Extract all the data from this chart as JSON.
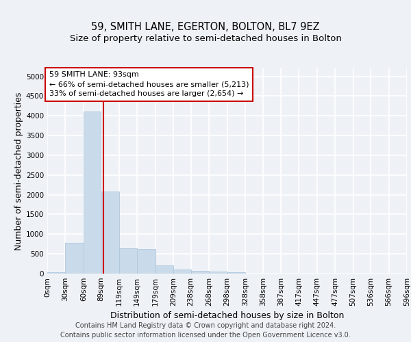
{
  "title": "59, SMITH LANE, EGERTON, BOLTON, BL7 9EZ",
  "subtitle": "Size of property relative to semi-detached houses in Bolton",
  "xlabel": "Distribution of semi-detached houses by size in Bolton",
  "ylabel": "Number of semi-detached properties",
  "footer_line1": "Contains HM Land Registry data © Crown copyright and database right 2024.",
  "footer_line2": "Contains public sector information licensed under the Open Government Licence v3.0.",
  "bar_color": "#c9daea",
  "bar_edge_color": "#b0c8dc",
  "property_line_color": "#cc0000",
  "property_sqm": 93,
  "annotation_line1": "59 SMITH LANE: 93sqm",
  "annotation_line2": "← 66% of semi-detached houses are smaller (5,213)",
  "annotation_line3": "33% of semi-detached houses are larger (2,654) →",
  "bin_edges": [
    0,
    30,
    60,
    89,
    119,
    149,
    179,
    209,
    238,
    268,
    298,
    328,
    358,
    387,
    417,
    447,
    477,
    507,
    536,
    566,
    596
  ],
  "bin_labels": [
    "0sqm",
    "30sqm",
    "60sqm",
    "89sqm",
    "119sqm",
    "149sqm",
    "179sqm",
    "209sqm",
    "238sqm",
    "268sqm",
    "298sqm",
    "328sqm",
    "358sqm",
    "387sqm",
    "417sqm",
    "447sqm",
    "477sqm",
    "507sqm",
    "536sqm",
    "566sqm",
    "596sqm"
  ],
  "counts": [
    30,
    780,
    4100,
    2080,
    640,
    620,
    200,
    110,
    75,
    55,
    40,
    0,
    0,
    0,
    0,
    0,
    0,
    0,
    0,
    0
  ],
  "ylim": [
    0,
    5200
  ],
  "yticks": [
    0,
    500,
    1000,
    1500,
    2000,
    2500,
    3000,
    3500,
    4000,
    4500,
    5000
  ],
  "background_color": "#eef2f7",
  "plot_bg_color": "#eef2f7",
  "grid_color": "#ffffff",
  "title_fontsize": 10.5,
  "subtitle_fontsize": 9.5,
  "axis_label_fontsize": 9,
  "tick_fontsize": 7.5,
  "footer_fontsize": 7.0
}
